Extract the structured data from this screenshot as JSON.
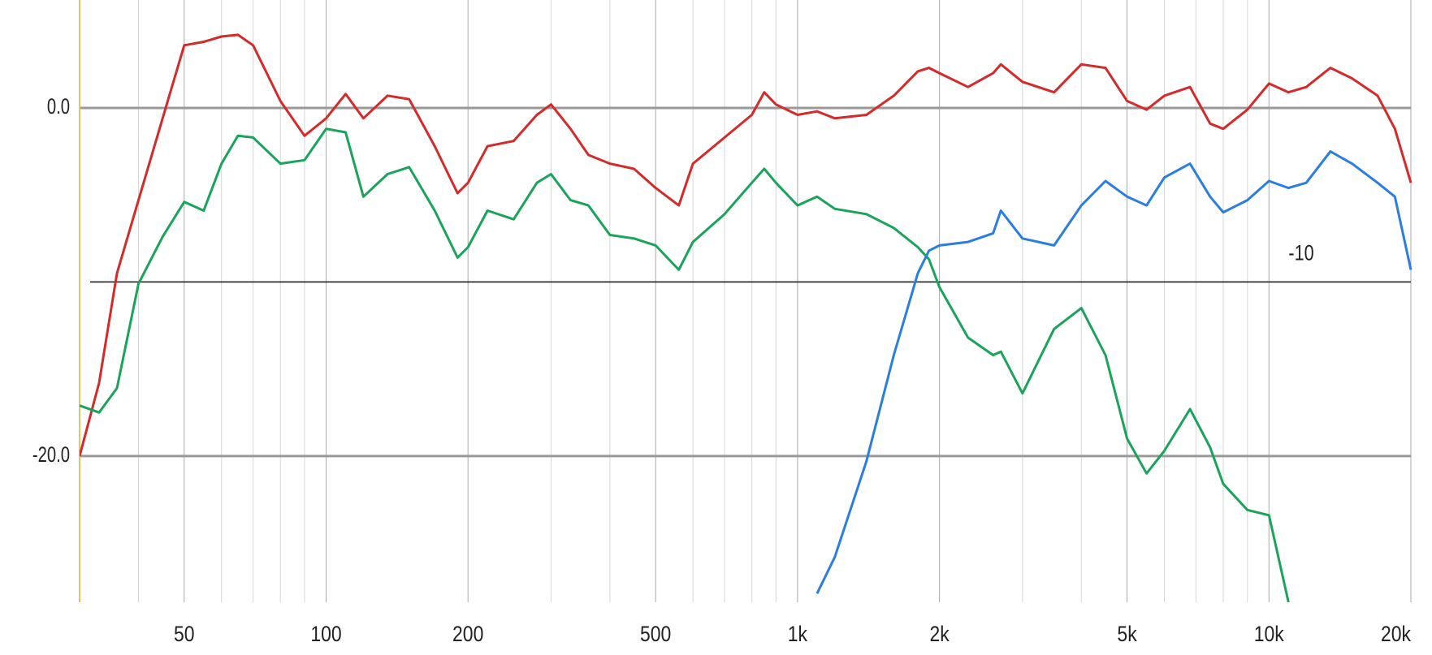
{
  "chart_data": {
    "type": "line",
    "x_scale": "log",
    "x": [
      30,
      33,
      36,
      40,
      45,
      50,
      55,
      60,
      65,
      70,
      80,
      90,
      100,
      110,
      120,
      135,
      150,
      170,
      190,
      200,
      220,
      250,
      280,
      300,
      330,
      360,
      400,
      450,
      500,
      560,
      600,
      700,
      800,
      850,
      900,
      1000,
      1100,
      1200,
      1400,
      1600,
      1800,
      1900,
      2000,
      2300,
      2600,
      2700,
      3000,
      3500,
      4000,
      4500,
      5000,
      5500,
      6000,
      6800,
      7500,
      8000,
      9000,
      10000,
      11000,
      12000,
      13500,
      15000,
      17000,
      18500,
      20000
    ],
    "xlim": [
      30,
      20000
    ],
    "xticks": [
      50,
      100,
      200,
      500,
      {
        "value": 1000,
        "label": "1k"
      },
      {
        "value": 2000,
        "label": "2k"
      },
      {
        "value": 5000,
        "label": "5k"
      },
      {
        "value": 10000,
        "label": "10k"
      },
      {
        "value": 20000,
        "label": "20k"
      }
    ],
    "minor_xticks": [
      40,
      60,
      70,
      80,
      90,
      300,
      400,
      600,
      700,
      800,
      900,
      3000,
      4000,
      6000,
      7000,
      8000,
      9000
    ],
    "ylim": [
      -28.4,
      6.2
    ],
    "yticks": [
      {
        "value": 0,
        "label": "0.0"
      },
      {
        "value": -20,
        "label": "-20.0"
      }
    ],
    "grid": true,
    "reference_lines": [
      {
        "value": -10,
        "label": "-10"
      }
    ],
    "series": [
      {
        "color": "#d42a2a",
        "values": [
          -20.0,
          -15.8,
          -9.5,
          -5.3,
          -0.6,
          3.6,
          3.8,
          4.1,
          4.2,
          3.6,
          0.4,
          -1.6,
          -0.6,
          0.8,
          -0.6,
          0.7,
          0.5,
          -2.2,
          -4.9,
          -4.3,
          -2.2,
          -1.9,
          -0.4,
          0.2,
          -1.2,
          -2.7,
          -3.2,
          -3.5,
          -4.6,
          -5.6,
          -3.2,
          -1.7,
          -0.4,
          0.9,
          0.2,
          -0.4,
          -0.2,
          -0.6,
          -0.4,
          0.7,
          2.1,
          2.3,
          2.0,
          1.2,
          2.0,
          2.5,
          1.5,
          0.9,
          2.5,
          2.3,
          0.4,
          -0.1,
          0.7,
          1.2,
          -0.9,
          -1.2,
          -0.1,
          1.4,
          0.9,
          1.2,
          2.3,
          1.7,
          0.7,
          -1.2,
          -4.3
        ]
      },
      {
        "color": "#1aa35a",
        "values": [
          -17.1,
          -17.5,
          -16.1,
          -10.1,
          -7.4,
          -5.4,
          -5.9,
          -3.2,
          -1.6,
          -1.7,
          -3.2,
          -3.0,
          -1.2,
          -1.4,
          -5.1,
          -3.8,
          -3.4,
          -5.9,
          -8.6,
          -8.0,
          -5.9,
          -6.4,
          -4.3,
          -3.8,
          -5.3,
          -5.6,
          -7.3,
          -7.5,
          -7.9,
          -9.3,
          -7.7,
          -6.1,
          -4.3,
          -3.5,
          -4.3,
          -5.6,
          -5.1,
          -5.8,
          -6.1,
          -6.9,
          -8.0,
          -8.7,
          -10.3,
          -13.2,
          -14.2,
          -14.0,
          -16.4,
          -12.7,
          -11.5,
          -14.2,
          -19.0,
          -21.0,
          -19.7,
          -17.3,
          -19.5,
          -21.6,
          -23.1,
          -23.4,
          -28.4,
          null,
          null,
          null,
          null,
          null,
          null
        ]
      },
      {
        "color": "#2a7de1",
        "values": [
          null,
          null,
          null,
          null,
          null,
          null,
          null,
          null,
          null,
          null,
          null,
          null,
          null,
          null,
          null,
          null,
          null,
          null,
          null,
          null,
          null,
          null,
          null,
          null,
          null,
          null,
          null,
          null,
          null,
          null,
          null,
          null,
          null,
          null,
          null,
          null,
          -27.9,
          -25.8,
          -20.3,
          -14.2,
          -9.5,
          -8.2,
          -7.9,
          -7.7,
          -7.2,
          -5.9,
          -7.5,
          -7.9,
          -5.6,
          -4.2,
          -5.1,
          -5.6,
          -4.0,
          -3.2,
          -5.1,
          -6.0,
          -5.3,
          -4.2,
          -4.6,
          -4.3,
          -2.5,
          -3.2,
          -4.3,
          -5.1,
          -9.3
        ]
      }
    ]
  }
}
